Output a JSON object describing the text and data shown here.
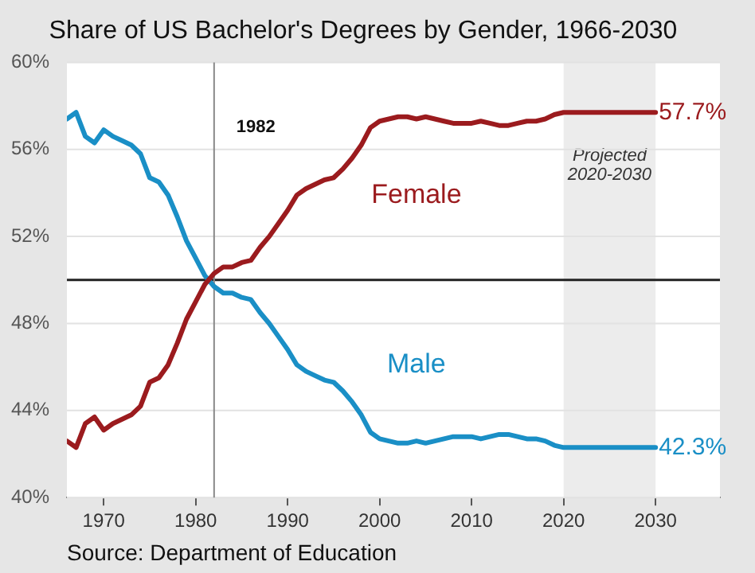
{
  "chart_data": {
    "type": "line",
    "title": "Share of US Bachelor's Degrees by Gender, 1966-2030",
    "x": [
      1966,
      1967,
      1968,
      1969,
      1970,
      1971,
      1972,
      1973,
      1974,
      1975,
      1976,
      1977,
      1978,
      1979,
      1980,
      1981,
      1982,
      1983,
      1984,
      1985,
      1986,
      1987,
      1988,
      1989,
      1990,
      1991,
      1992,
      1993,
      1994,
      1995,
      1996,
      1997,
      1998,
      1999,
      2000,
      2001,
      2002,
      2003,
      2004,
      2005,
      2006,
      2007,
      2008,
      2009,
      2010,
      2011,
      2012,
      2013,
      2014,
      2015,
      2016,
      2017,
      2018,
      2019,
      2020,
      2021,
      2022,
      2023,
      2024,
      2025,
      2026,
      2027,
      2028,
      2029,
      2030
    ],
    "series": [
      {
        "name": "Female",
        "color": "#9b1b1e",
        "values": [
          42.6,
          42.3,
          43.4,
          43.7,
          43.1,
          43.4,
          43.6,
          43.8,
          44.2,
          45.3,
          45.5,
          46.1,
          47.1,
          48.2,
          49.0,
          49.8,
          50.3,
          50.6,
          50.6,
          50.8,
          50.9,
          51.5,
          52.0,
          52.6,
          53.2,
          53.9,
          54.2,
          54.4,
          54.6,
          54.7,
          55.1,
          55.6,
          56.2,
          57.0,
          57.3,
          57.4,
          57.5,
          57.5,
          57.4,
          57.5,
          57.4,
          57.3,
          57.2,
          57.2,
          57.2,
          57.3,
          57.2,
          57.1,
          57.1,
          57.2,
          57.3,
          57.3,
          57.4,
          57.6,
          57.7,
          57.7,
          57.7,
          57.7,
          57.7,
          57.7,
          57.7,
          57.7,
          57.7,
          57.7,
          57.7
        ],
        "value_labels": [
          null,
          null,
          null,
          null,
          null,
          null,
          null,
          null,
          null,
          null,
          null,
          null,
          null,
          null,
          null,
          null,
          null,
          null,
          null,
          null,
          null,
          null,
          null,
          null,
          null,
          null,
          null,
          null,
          null,
          null,
          null,
          null,
          null,
          null,
          null,
          null,
          null,
          null,
          null,
          null,
          null,
          null,
          null,
          null,
          null,
          null,
          null,
          null,
          null,
          null,
          null,
          null,
          null,
          null,
          null,
          null,
          null,
          null,
          null,
          null,
          null,
          null,
          null,
          null,
          "57.7%"
        ]
      },
      {
        "name": "Male",
        "color": "#1a8fc6",
        "values": [
          57.4,
          57.7,
          56.6,
          56.3,
          56.9,
          56.6,
          56.4,
          56.2,
          55.8,
          54.7,
          54.5,
          53.9,
          52.9,
          51.8,
          51.0,
          50.2,
          49.7,
          49.4,
          49.4,
          49.2,
          49.1,
          48.5,
          48.0,
          47.4,
          46.8,
          46.1,
          45.8,
          45.6,
          45.4,
          45.3,
          44.9,
          44.4,
          43.8,
          43.0,
          42.7,
          42.6,
          42.5,
          42.5,
          42.6,
          42.5,
          42.6,
          42.7,
          42.8,
          42.8,
          42.8,
          42.7,
          42.8,
          42.9,
          42.9,
          42.8,
          42.7,
          42.7,
          42.6,
          42.4,
          42.3,
          42.3,
          42.3,
          42.3,
          42.3,
          42.3,
          42.3,
          42.3,
          42.3,
          42.3,
          42.3
        ],
        "value_labels": [
          null,
          null,
          null,
          null,
          null,
          null,
          null,
          null,
          null,
          null,
          null,
          null,
          null,
          null,
          null,
          null,
          null,
          null,
          null,
          null,
          null,
          null,
          null,
          null,
          null,
          null,
          null,
          null,
          null,
          null,
          null,
          null,
          null,
          null,
          null,
          null,
          null,
          null,
          null,
          null,
          null,
          null,
          null,
          null,
          null,
          null,
          null,
          null,
          null,
          null,
          null,
          null,
          null,
          null,
          null,
          null,
          null,
          null,
          null,
          null,
          null,
          null,
          null,
          null,
          "42.3%"
        ]
      }
    ],
    "xlim": [
      1966,
      2037
    ],
    "xticks": [
      1970,
      1980,
      1990,
      2000,
      2010,
      2020,
      2030
    ],
    "ylim": [
      40,
      60
    ],
    "yticks": [
      {
        "value": 40,
        "label": "40%"
      },
      {
        "value": 44,
        "label": "44%"
      },
      {
        "value": 48,
        "label": "48%"
      },
      {
        "value": 52,
        "label": "52%"
      },
      {
        "value": 56,
        "label": "56%"
      },
      {
        "value": 60,
        "label": "60%"
      }
    ],
    "grid": "y",
    "legend": false,
    "marker": "none",
    "line_style": "solid",
    "ref_lines": [
      {
        "axis": "y",
        "value": 50,
        "color": "#222222"
      },
      {
        "axis": "x",
        "value": 1982,
        "label": "1982",
        "color": "#888888"
      }
    ],
    "bands": [
      {
        "axis": "x",
        "from": 2020,
        "to": 2030,
        "label": "Projected 2020-2030",
        "color": "#ececec"
      }
    ],
    "annotations": [
      "Source: Department of Education"
    ]
  }
}
